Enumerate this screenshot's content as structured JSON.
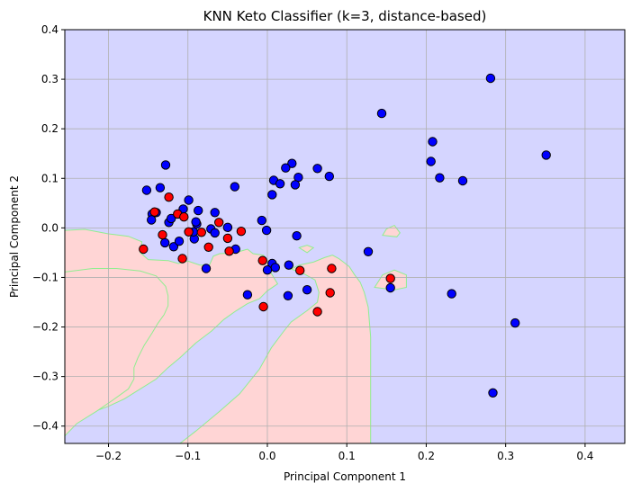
{
  "chart_data": {
    "type": "scatter",
    "title": "KNN Keto Classifier (k=3, distance-based)",
    "xlabel": "Principal Component 1",
    "ylabel": "Principal Component 2",
    "xlim": [
      -0.255,
      0.45
    ],
    "ylim": [
      -0.435,
      0.4
    ],
    "xticks": [
      -0.2,
      -0.1,
      0.0,
      0.1,
      0.2,
      0.3,
      0.4
    ],
    "yticks": [
      -0.4,
      -0.3,
      -0.2,
      -0.1,
      0.0,
      0.1,
      0.2,
      0.3,
      0.4
    ],
    "xtick_labels": [
      "−0.2",
      "−0.1",
      "0.0",
      "0.1",
      "0.2",
      "0.3",
      "0.4"
    ],
    "ytick_labels": [
      "−0.4",
      "−0.3",
      "−0.2",
      "−0.1",
      "0.0",
      "0.1",
      "0.2",
      "0.3",
      "0.4"
    ],
    "grid": true,
    "colors": {
      "class_blue": "#0000ff",
      "class_red": "#ff0000",
      "region_blue": "#d5d5ff",
      "region_red": "#ffd5d5",
      "region_border": "#90ee90",
      "grid": "#b0b0b0"
    },
    "series": [
      {
        "color": "blue",
        "points": [
          [
            0.281,
            0.302
          ],
          [
            0.144,
            0.231
          ],
          [
            0.351,
            0.147
          ],
          [
            0.208,
            0.174
          ],
          [
            0.206,
            0.134
          ],
          [
            0.217,
            0.101
          ],
          [
            0.246,
            0.095
          ],
          [
            0.312,
            -0.192
          ],
          [
            0.284,
            -0.333
          ],
          [
            0.232,
            -0.133
          ],
          [
            0.155,
            -0.121
          ],
          [
            0.127,
            -0.048
          ],
          [
            0.031,
            0.13
          ],
          [
            0.023,
            0.121
          ],
          [
            0.063,
            0.12
          ],
          [
            0.078,
            0.104
          ],
          [
            0.039,
            0.102
          ],
          [
            0.035,
            0.087
          ],
          [
            0.008,
            0.096
          ],
          [
            0.016,
            0.089
          ],
          [
            0.006,
            0.067
          ],
          [
            0.037,
            -0.016
          ],
          [
            0.027,
            -0.075
          ],
          [
            -0.001,
            -0.005
          ],
          [
            -0.007,
            0.015
          ],
          [
            0.006,
            -0.072
          ],
          [
            0.01,
            -0.08
          ],
          [
            0.0,
            -0.085
          ],
          [
            -0.025,
            -0.135
          ],
          [
            0.026,
            -0.137
          ],
          [
            0.05,
            -0.125
          ],
          [
            -0.128,
            0.127
          ],
          [
            -0.152,
            0.076
          ],
          [
            -0.135,
            0.081
          ],
          [
            -0.041,
            0.083
          ],
          [
            -0.099,
            0.056
          ],
          [
            -0.106,
            0.038
          ],
          [
            -0.087,
            0.035
          ],
          [
            -0.066,
            0.031
          ],
          [
            -0.124,
            0.011
          ],
          [
            -0.121,
            0.019
          ],
          [
            -0.089,
            0.008
          ],
          [
            -0.09,
            0.012
          ],
          [
            -0.145,
            0.028
          ],
          [
            -0.14,
            0.031
          ],
          [
            -0.146,
            0.016
          ],
          [
            -0.071,
            -0.002
          ],
          [
            -0.066,
            -0.01
          ],
          [
            -0.05,
            0.001
          ],
          [
            -0.092,
            -0.022
          ],
          [
            -0.093,
            -0.008
          ],
          [
            -0.118,
            -0.038
          ],
          [
            -0.129,
            -0.03
          ],
          [
            -0.111,
            -0.027
          ],
          [
            -0.04,
            -0.043
          ],
          [
            -0.077,
            -0.082
          ]
        ]
      },
      {
        "color": "red",
        "points": [
          [
            -0.124,
            0.062
          ],
          [
            -0.142,
            0.032
          ],
          [
            -0.113,
            0.028
          ],
          [
            -0.105,
            0.022
          ],
          [
            -0.132,
            -0.014
          ],
          [
            -0.156,
            -0.043
          ],
          [
            -0.099,
            -0.008
          ],
          [
            -0.083,
            -0.009
          ],
          [
            -0.061,
            0.011
          ],
          [
            -0.033,
            -0.007
          ],
          [
            -0.074,
            -0.039
          ],
          [
            -0.05,
            -0.021
          ],
          [
            -0.048,
            -0.047
          ],
          [
            -0.107,
            -0.062
          ],
          [
            -0.006,
            -0.066
          ],
          [
            -0.005,
            -0.159
          ],
          [
            0.041,
            -0.086
          ],
          [
            0.081,
            -0.082
          ],
          [
            0.079,
            -0.131
          ],
          [
            0.063,
            -0.169
          ],
          [
            0.155,
            -0.102
          ]
        ]
      }
    ]
  }
}
